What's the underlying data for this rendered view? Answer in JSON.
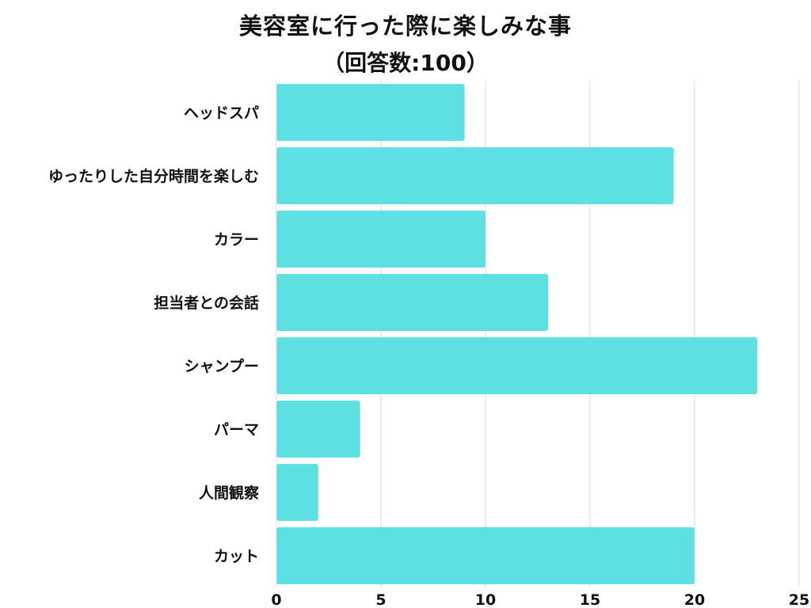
{
  "chart_data": {
    "type": "bar",
    "orientation": "horizontal",
    "title": "美容室に行った際に楽しみな事",
    "subtitle": "（回答数:100）",
    "xlabel": "",
    "ylabel": "",
    "categories": [
      "ヘッドスパ",
      "ゆったりした自分時間を楽しむ",
      "カラー",
      "担当者との会話",
      "シャンプー",
      "パーマ",
      "人間観察",
      "カット"
    ],
    "values": [
      9,
      19,
      10,
      13,
      23,
      4,
      2,
      20
    ],
    "xlim": [
      0,
      25
    ],
    "xticks": [
      "0",
      "5",
      "10",
      "15",
      "20",
      "25"
    ],
    "grid": "vertical",
    "legend": "none",
    "bar_color": "#5ee0e3",
    "grid_color": "#d9d9d9",
    "text_color": "#111111"
  }
}
